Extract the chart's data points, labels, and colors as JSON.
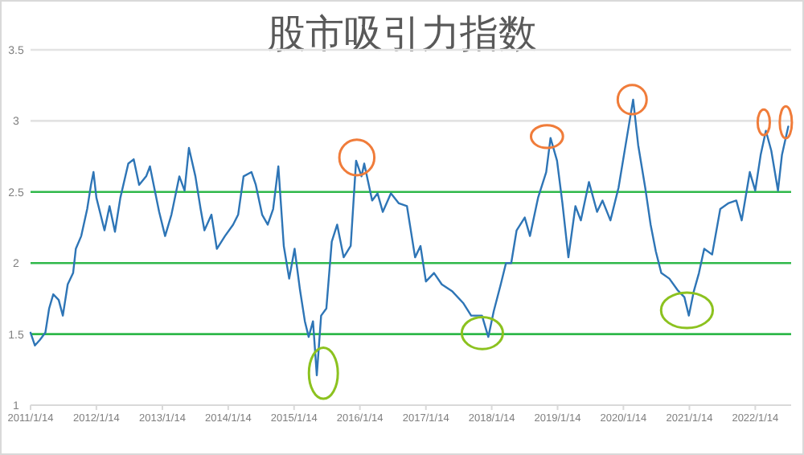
{
  "chart_data": {
    "type": "line",
    "title": "股市吸引力指数",
    "color": "#2e75b6",
    "x": [
      "2011-01-14",
      "2011-02-07",
      "2011-03-07",
      "2011-04-06",
      "2011-04-27",
      "2011-05-20",
      "2011-06-19",
      "2011-07-12",
      "2011-08-08",
      "2011-09-07",
      "2011-09-22",
      "2011-10-22",
      "2011-11-24",
      "2011-12-15",
      "2011-12-29",
      "2012-01-14",
      "2012-02-28",
      "2012-03-27",
      "2012-04-26",
      "2012-05-26",
      "2012-07-09",
      "2012-08-08",
      "2012-09-07",
      "2012-10-16",
      "2012-11-06",
      "2012-12-27",
      "2013-01-29",
      "2013-03-05",
      "2013-04-18",
      "2013-05-17",
      "2013-06-10",
      "2013-07-16",
      "2013-08-14",
      "2013-09-04",
      "2013-10-13",
      "2013-11-12",
      "2013-12-27",
      "2014-02-10",
      "2014-03-10",
      "2014-04-09",
      "2014-05-23",
      "2014-06-16",
      "2014-07-21",
      "2014-08-21",
      "2014-09-20",
      "2014-10-19",
      "2014-11-18",
      "2014-12-18",
      "2015-01-17",
      "2015-02-16",
      "2015-03-15",
      "2015-04-05",
      "2015-04-29",
      "2015-05-20",
      "2015-06-13",
      "2015-07-12",
      "2015-08-11",
      "2015-09-10",
      "2015-10-16",
      "2015-11-24",
      "2015-12-24",
      "2016-01-23",
      "2016-02-07",
      "2016-03-22",
      "2016-04-21",
      "2016-05-20",
      "2016-07-04",
      "2016-08-17",
      "2016-10-01",
      "2016-11-15",
      "2016-12-15",
      "2017-01-14",
      "2017-02-28",
      "2017-04-12",
      "2017-06-10",
      "2017-08-08",
      "2017-09-22",
      "2017-11-21",
      "2017-12-26",
      "2018-01-25",
      "2018-03-05",
      "2018-04-03",
      "2018-05-02",
      "2018-06-01",
      "2018-07-16",
      "2018-08-14",
      "2018-09-28",
      "2018-11-12",
      "2018-12-06",
      "2019-01-11",
      "2019-02-10",
      "2019-03-15",
      "2019-04-23",
      "2019-05-23",
      "2019-07-07",
      "2019-08-21",
      "2019-09-20",
      "2019-11-03",
      "2019-12-18",
      "2020-01-17",
      "2020-03-08",
      "2020-04-05",
      "2020-05-14",
      "2020-06-13",
      "2020-07-12",
      "2020-08-11",
      "2020-09-25",
      "2020-11-09",
      "2020-12-17",
      "2021-01-11",
      "2021-02-07",
      "2021-03-08",
      "2021-04-06",
      "2021-05-20",
      "2021-07-04",
      "2021-08-17",
      "2021-10-01",
      "2021-10-31",
      "2021-12-15",
      "2022-01-14",
      "2022-02-13",
      "2022-03-14",
      "2022-04-13",
      "2022-05-20",
      "2022-06-11",
      "2022-07-16"
    ],
    "values": [
      1.51,
      1.42,
      1.46,
      1.51,
      1.68,
      1.78,
      1.74,
      1.63,
      1.85,
      1.93,
      2.1,
      2.19,
      2.38,
      2.55,
      2.64,
      2.46,
      2.23,
      2.4,
      2.22,
      2.46,
      2.7,
      2.73,
      2.55,
      2.61,
      2.68,
      2.36,
      2.19,
      2.34,
      2.61,
      2.51,
      2.81,
      2.61,
      2.38,
      2.23,
      2.34,
      2.1,
      2.19,
      2.27,
      2.34,
      2.61,
      2.64,
      2.55,
      2.34,
      2.27,
      2.38,
      2.68,
      2.12,
      1.89,
      2.1,
      1.81,
      1.59,
      1.48,
      1.59,
      1.21,
      1.63,
      1.68,
      2.15,
      2.27,
      2.04,
      2.12,
      2.72,
      2.61,
      2.7,
      2.44,
      2.49,
      2.36,
      2.49,
      2.42,
      2.4,
      2.04,
      2.12,
      1.87,
      1.93,
      1.85,
      1.8,
      1.72,
      1.63,
      1.63,
      1.48,
      1.66,
      1.85,
      2.0,
      2.0,
      2.23,
      2.32,
      2.19,
      2.46,
      2.64,
      2.88,
      2.72,
      2.42,
      2.04,
      2.4,
      2.3,
      2.57,
      2.36,
      2.44,
      2.3,
      2.53,
      2.76,
      3.15,
      2.83,
      2.53,
      2.27,
      2.08,
      1.93,
      1.89,
      1.81,
      1.76,
      1.63,
      1.8,
      1.93,
      2.1,
      2.06,
      2.38,
      2.42,
      2.44,
      2.3,
      2.64,
      2.51,
      2.76,
      2.93,
      2.79,
      2.51,
      2.76,
      2.96
    ],
    "xlim": [
      "2011-01-14",
      "2022-08-01"
    ],
    "xticks": [
      {
        "value": "2011-01-14",
        "label": "2011/1/14"
      },
      {
        "value": "2012-01-14",
        "label": "2012/1/14"
      },
      {
        "value": "2013-01-14",
        "label": "2013/1/14"
      },
      {
        "value": "2014-01-14",
        "label": "2014/1/14"
      },
      {
        "value": "2015-01-14",
        "label": "2015/1/14"
      },
      {
        "value": "2016-01-14",
        "label": "2016/1/14"
      },
      {
        "value": "2017-01-14",
        "label": "2017/1/14"
      },
      {
        "value": "2018-01-14",
        "label": "2018/1/14"
      },
      {
        "value": "2019-01-14",
        "label": "2019/1/14"
      },
      {
        "value": "2020-01-14",
        "label": "2020/1/14"
      },
      {
        "value": "2021-01-14",
        "label": "2021/1/14"
      },
      {
        "value": "2022-01-14",
        "label": "2022/1/14"
      }
    ],
    "ylim": [
      1,
      3.5
    ],
    "yticks": [
      1,
      1.5,
      2,
      2.5,
      3,
      3.5
    ],
    "ref_lines": [
      {
        "axis": "y",
        "value": 1.5,
        "color": "#2fb84a"
      },
      {
        "axis": "y",
        "value": 2,
        "color": "#2fb84a"
      },
      {
        "axis": "y",
        "value": 2.5,
        "color": "#2fb84a"
      },
      {
        "axis": "y",
        "value": 3,
        "color": "#e3e3e3"
      },
      {
        "axis": "y",
        "value": 3.5,
        "color": "#e3e3e3"
      }
    ]
  }
}
